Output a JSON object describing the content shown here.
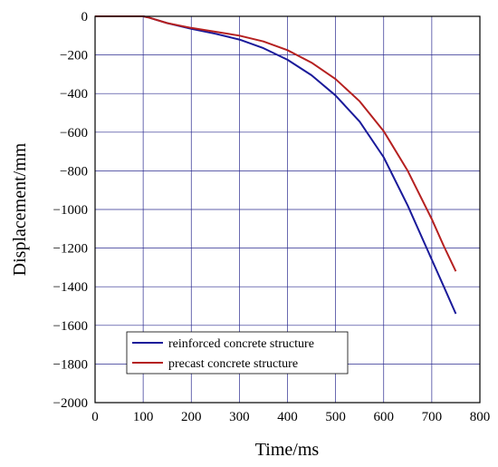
{
  "chart_data": {
    "type": "line",
    "xlabel": "Time/ms",
    "ylabel": "Displacement/mm",
    "xlim": [
      0,
      800
    ],
    "ylim": [
      -2000,
      0
    ],
    "xticks": [
      0,
      100,
      200,
      300,
      400,
      500,
      600,
      700,
      800
    ],
    "yticks": [
      0,
      -200,
      -400,
      -600,
      -800,
      -1000,
      -1200,
      -1400,
      -1600,
      -1800,
      -2000
    ],
    "ytick_labels": [
      "0",
      "−200",
      "−400",
      "−600",
      "−800",
      "−1000",
      "−1200",
      "−1400",
      "−1600",
      "−1800",
      "−2000"
    ],
    "grid": true,
    "legend_position": "bottom-left",
    "series": [
      {
        "name": "reinforced concrete structure",
        "color": "#1a1a9a",
        "x": [
          0,
          100,
          110,
          150,
          200,
          250,
          300,
          350,
          400,
          450,
          500,
          550,
          600,
          650,
          700,
          725,
          750
        ],
        "y": [
          0,
          0,
          -5,
          -35,
          -65,
          -90,
          -120,
          -165,
          -225,
          -305,
          -410,
          -545,
          -730,
          -980,
          -1260,
          -1400,
          -1540
        ]
      },
      {
        "name": "precast concrete structure",
        "color": "#b52020",
        "x": [
          0,
          100,
          110,
          150,
          200,
          250,
          300,
          350,
          400,
          450,
          500,
          550,
          600,
          650,
          700,
          725,
          750
        ],
        "y": [
          0,
          0,
          -5,
          -35,
          -60,
          -80,
          -100,
          -130,
          -175,
          -240,
          -325,
          -440,
          -595,
          -800,
          -1050,
          -1190,
          -1320
        ]
      }
    ]
  }
}
